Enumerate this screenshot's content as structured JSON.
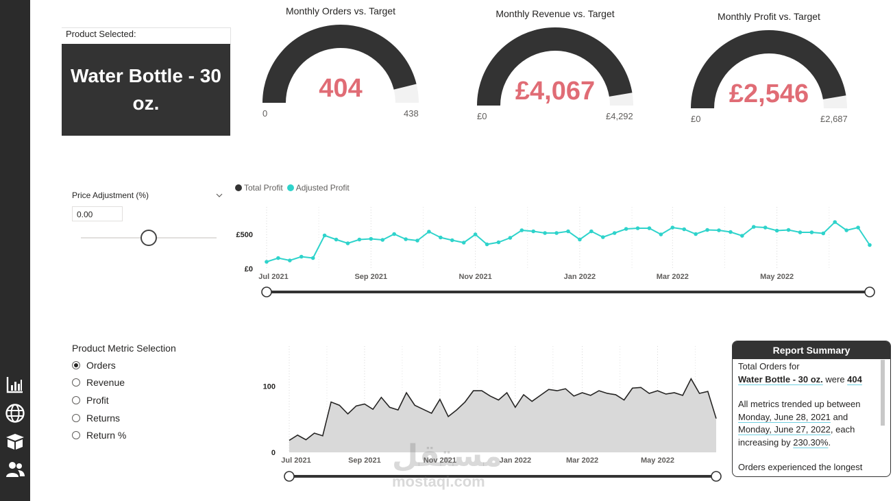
{
  "nav": {
    "icons": [
      "bar-chart-icon",
      "globe-icon",
      "box-icon",
      "users-icon"
    ]
  },
  "product_card": {
    "label": "Product Selected:",
    "name": "Water Bottle - 30 oz."
  },
  "gauges": [
    {
      "title": "Monthly Orders vs. Target",
      "value_text": "404",
      "min_text": "0",
      "max_text": "438",
      "value": 404,
      "target": 438
    },
    {
      "title": "Monthly Revenue vs. Target",
      "value_text": "£4,067",
      "min_text": "£0",
      "max_text": "£4,292",
      "value": 4067,
      "target": 4292
    },
    {
      "title": "Monthly Profit vs. Target",
      "value_text": "£2,546",
      "min_text": "£0",
      "max_text": "£2,687",
      "value": 2546,
      "target": 2687
    }
  ],
  "price_adjustment": {
    "label": "Price Adjustment (%)",
    "value": "0.00",
    "slider_fraction": 0.5
  },
  "metric_selection": {
    "label": "Product Metric Selection",
    "options": [
      "Orders",
      "Revenue",
      "Profit",
      "Returns",
      "Return %"
    ],
    "selected": "Orders"
  },
  "summary": {
    "title": "Report Summary",
    "line1": "Total Orders for",
    "product": "Water Bottle - 30 oz.",
    "were": " were ",
    "total": "404",
    "p2a": "All metrics trended up between",
    "date1": "Monday, June 28, 2021",
    "and": " and",
    "date2": "Monday, June 27, 2022",
    "p2b": ", each increasing by ",
    "pct": "230.30%",
    "period": ".",
    "p3": "Orders experienced the longest"
  },
  "colors": {
    "accent": "#e06c75",
    "teal": "#2ed3cb",
    "dark": "#333333",
    "track": "#f2f2f2",
    "area": "#d9d9d9"
  },
  "chart_data": [
    {
      "type": "line",
      "legend": [
        "Total Profit",
        "Adjusted Profit"
      ],
      "legend_position": "top-left",
      "colors": [
        "#333333",
        "#2ed3cb"
      ],
      "ytick_labels": [
        "£500",
        "£0"
      ],
      "yticks": [
        500,
        0
      ],
      "ylim": [
        0,
        800
      ],
      "xtick_labels": [
        "Jul 2021",
        "Sep 2021",
        "Nov 2021",
        "Jan 2022",
        "Mar 2022",
        "May 2022"
      ],
      "xtick_index": [
        0,
        9,
        18,
        27,
        35,
        44
      ],
      "series": [
        {
          "name": "Adjusted Profit",
          "values": [
            100,
            155,
            120,
            175,
            155,
            485,
            425,
            370,
            425,
            435,
            420,
            505,
            430,
            410,
            540,
            455,
            415,
            380,
            500,
            355,
            385,
            450,
            560,
            545,
            520,
            520,
            545,
            425,
            545,
            460,
            520,
            580,
            590,
            590,
            500,
            600,
            575,
            505,
            565,
            560,
            535,
            480,
            610,
            600,
            555,
            565,
            530,
            530,
            515,
            680,
            560,
            600,
            345
          ]
        }
      ],
      "grid": "dotted vertical",
      "range_slider": true
    },
    {
      "type": "area",
      "ytick_labels": [
        "100",
        "0"
      ],
      "yticks": [
        100,
        0
      ],
      "ylim": [
        0,
        150
      ],
      "xtick_labels": [
        "Jul 2021",
        "Sep 2021",
        "Nov 2021",
        "Jan 2022",
        "Mar 2022",
        "May 2022"
      ],
      "xtick_index": [
        0,
        9,
        18,
        27,
        35,
        44
      ],
      "series": [
        {
          "name": "",
          "values": [
            18,
            26,
            19,
            29,
            25,
            76,
            71,
            58,
            70,
            73,
            65,
            83,
            68,
            64,
            90,
            71,
            65,
            59,
            80,
            54,
            64,
            76,
            93,
            93,
            85,
            79,
            90,
            68,
            87,
            77,
            86,
            95,
            93,
            96,
            85,
            90,
            86,
            93,
            89,
            87,
            79,
            97,
            98,
            89,
            93,
            88,
            90,
            86,
            111,
            89,
            92,
            51
          ]
        }
      ],
      "grid": "dotted vertical",
      "range_slider": true
    }
  ]
}
